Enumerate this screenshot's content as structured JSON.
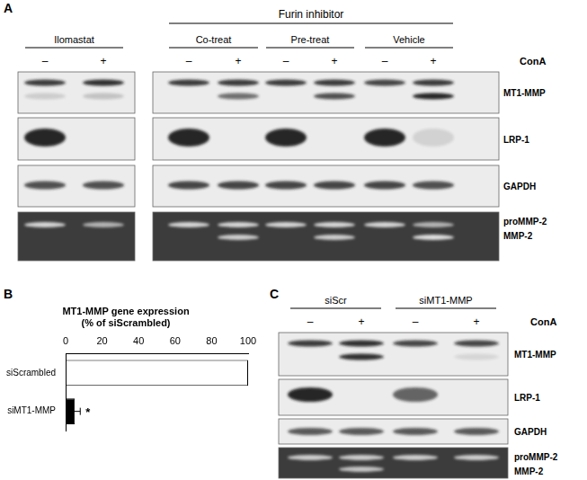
{
  "panels": [
    {
      "label": "A",
      "header": "Furin inhibitor",
      "treatment": "ConA",
      "groups": [
        {
          "name": "Ilomastat",
          "lanes": [
            "–",
            "+"
          ]
        },
        {
          "name": "Co-treat",
          "lanes": [
            "–",
            "+"
          ]
        },
        {
          "name": "Pre-treat",
          "lanes": [
            "–",
            "+"
          ]
        },
        {
          "name": "Vehicle",
          "lanes": [
            "–",
            "+"
          ]
        }
      ],
      "blots": [
        "MT1-MMP",
        "LRP-1",
        "GAPDH",
        [
          "proMMP-2",
          "MMP-2"
        ]
      ]
    },
    {
      "label": "B"
    },
    {
      "label": "C",
      "treatment": "ConA",
      "groups": [
        {
          "name": "siScr",
          "lanes": [
            "–",
            "+"
          ]
        },
        {
          "name": "siMT1-MMP",
          "lanes": [
            "–",
            "+"
          ]
        }
      ],
      "blots": [
        "MT1-MMP",
        "LRP-1",
        "GAPDH",
        [
          "proMMP-2",
          "MMP-2"
        ]
      ]
    }
  ],
  "chart_data": {
    "type": "bar",
    "orientation": "horizontal",
    "title": [
      "MT1-MMP gene expression",
      "(% of siScrambled)"
    ],
    "categories": [
      "siScrambled",
      "siMT1-MMP"
    ],
    "values": [
      100,
      5
    ],
    "errors": [
      null,
      3
    ],
    "colors": [
      "#ffffff",
      "#000000"
    ],
    "annotations": [
      {
        "category": "siMT1-MMP",
        "text": "*"
      }
    ],
    "xlim": [
      0,
      100
    ],
    "xticks": [
      0,
      20,
      40,
      60,
      80,
      100
    ],
    "grid": false
  }
}
